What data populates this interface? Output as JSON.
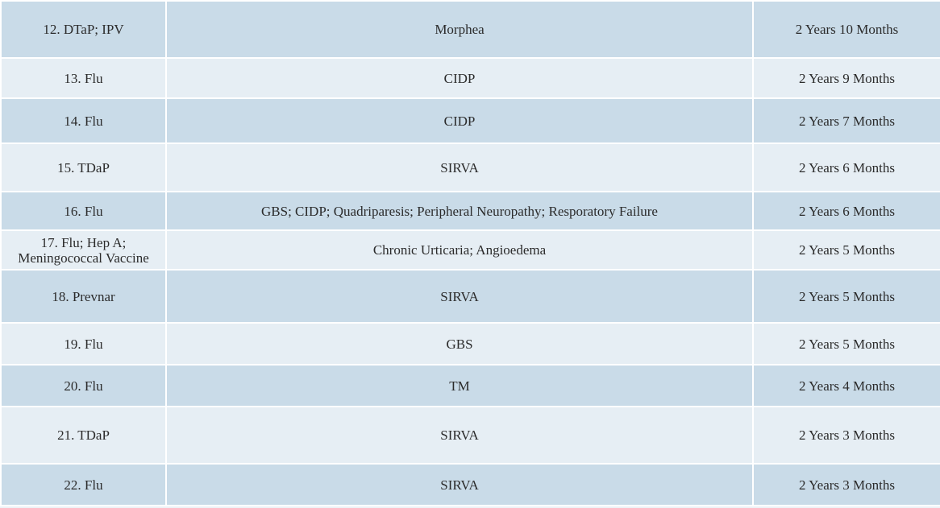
{
  "table": {
    "rows": [
      {
        "vaccine": "12. DTaP; IPV",
        "injury": "Morphea",
        "duration": "2 Years 10 Months",
        "shade": "dark"
      },
      {
        "vaccine": "13. Flu",
        "injury": "CIDP",
        "duration": "2 Years 9 Months",
        "shade": "light"
      },
      {
        "vaccine": "14. Flu",
        "injury": "CIDP",
        "duration": "2 Years 7 Months",
        "shade": "dark"
      },
      {
        "vaccine": "15. TDaP",
        "injury": "SIRVA",
        "duration": "2 Years 6 Months",
        "shade": "light"
      },
      {
        "vaccine": "16. Flu",
        "injury": "GBS; CIDP; Quadriparesis; Peripheral Neuropathy; Resporatory Failure",
        "duration": "2 Years 6 Months",
        "shade": "dark"
      },
      {
        "vaccine": "17. Flu; Hep A; Meningococcal Vaccine",
        "injury": "Chronic Urticaria; Angioedema",
        "duration": "2 Years 5 Months",
        "shade": "light"
      },
      {
        "vaccine": "18. Prevnar",
        "injury": "SIRVA",
        "duration": "2 Years 5 Months",
        "shade": "dark"
      },
      {
        "vaccine": "19. Flu",
        "injury": "GBS",
        "duration": "2 Years 5 Months",
        "shade": "light"
      },
      {
        "vaccine": "20. Flu",
        "injury": "TM",
        "duration": "2 Years 4 Months",
        "shade": "dark"
      },
      {
        "vaccine": "21. TDaP",
        "injury": "SIRVA",
        "duration": "2 Years 3 Months",
        "shade": "light"
      },
      {
        "vaccine": "22. Flu",
        "injury": "SIRVA",
        "duration": "2 Years 3 Months",
        "shade": "dark"
      }
    ]
  }
}
